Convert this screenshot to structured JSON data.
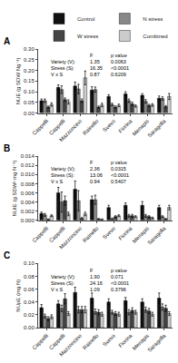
{
  "chart_data": [
    {
      "type": "bar",
      "title": "A",
      "categories": [
        "Cappelli",
        "Cappelli",
        "Mazzoncino",
        "Rainello",
        "Svevo",
        "Fiorina",
        "Menapis",
        "Saragolla"
      ],
      "ylabel": "NUE (g SDW Ng⁻¹)",
      "ylim": [
        0,
        0.3
      ],
      "yticks": [
        {
          "value": 0,
          "label": "0.00"
        },
        0.05,
        {
          "value": 0.1,
          "label": "0.10"
        },
        0.15,
        {
          "value": 0.2,
          "label": "0.20"
        },
        0.25,
        {
          "value": 0.3,
          "label": "0.30"
        }
      ],
      "series": [
        {
          "name": "Control",
          "color": "#111111",
          "values": [
            0.058,
            0.12,
            0.127,
            0.108,
            0.078,
            0.09,
            0.083,
            0.07
          ],
          "errors": [
            0.008,
            0.012,
            0.018,
            0.015,
            0.008,
            0.01,
            0.008,
            0.01
          ]
        },
        {
          "name": "N stress",
          "color": "#888888",
          "values": [
            0.058,
            0.11,
            0.113,
            0.11,
            0.04,
            0.058,
            0.055,
            0.068
          ],
          "errors": [
            0.008,
            0.018,
            0.022,
            0.012,
            0.006,
            0.008,
            0.008,
            0.008
          ]
        },
        {
          "name": "W stress",
          "color": "#444444",
          "values": [
            0.028,
            0.063,
            0.058,
            0.028,
            0.028,
            0.043,
            0.036,
            0.03
          ],
          "errors": [
            0.005,
            0.008,
            0.008,
            0.005,
            0.005,
            0.008,
            0.005,
            0.005
          ]
        },
        {
          "name": "Combined",
          "color": "#cccccc",
          "values": [
            0.04,
            0.052,
            0.165,
            0.038,
            0.036,
            0.033,
            0.038,
            0.078
          ],
          "errors": [
            0.008,
            0.01,
            0.032,
            0.008,
            0.006,
            0.005,
            0.006,
            0.014
          ]
        }
      ],
      "annotations": [
        [
          "F",
          "p value"
        ],
        [
          "Variety (V):",
          "1.35",
          "0.0063"
        ],
        [
          "Stress (S):",
          "16.35",
          "<0.0001"
        ],
        [
          "V x S",
          "0.87",
          "0.6209"
        ]
      ],
      "legend": "upper right"
    },
    {
      "type": "bar",
      "title": "B",
      "categories": [
        "Cappelli",
        "Cappelli",
        "Mazzoncino",
        "Rainello",
        "Svevo",
        "Fiorina",
        "Menapis",
        "Saragolla"
      ],
      "ylabel": "NUtE (g SDW² mg N⁻¹)",
      "ylim": [
        0,
        0.014
      ],
      "yticks": [
        {
          "value": 0,
          "label": "0.000"
        },
        0.002,
        0.004,
        0.006,
        0.008,
        {
          "value": 0.01,
          "label": "0.010"
        },
        0.012,
        0.014
      ],
      "series": [
        {
          "name": "Control",
          "color": "#111111",
          "values": [
            0.0015,
            0.006,
            0.0068,
            0.0045,
            0.0028,
            0.0033,
            0.0033,
            0.0028
          ],
          "errors": [
            0.0003,
            0.0012,
            0.0018,
            0.0008,
            0.0005,
            0.0005,
            0.0008,
            0.0005
          ]
        },
        {
          "name": "N stress",
          "color": "#888888",
          "values": [
            0.0012,
            0.004,
            0.0043,
            0.0045,
            0.0003,
            0.001,
            0.001,
            0.0008
          ],
          "errors": [
            0.0003,
            0.0022,
            0.0022,
            0.001,
            0.0002,
            0.0003,
            0.0003,
            0.0002
          ]
        },
        {
          "name": "W stress",
          "color": "#444444",
          "values": [
            0.0002,
            0.0043,
            0.0004,
            0.0003,
            0.0008,
            0.001,
            0.0008,
            0.0003
          ],
          "errors": [
            0.0001,
            0.001,
            0.0002,
            0.0001,
            0.0002,
            0.0003,
            0.0002,
            0.0001
          ]
        },
        {
          "name": "Combined",
          "color": "#cccccc",
          "values": [
            0.001,
            0.0014,
            0.0014,
            0.0002,
            0.001,
            0.0008,
            0.0005,
            0.0028
          ],
          "errors": [
            0.0002,
            0.0004,
            0.0004,
            0.0001,
            0.0002,
            0.0002,
            0.0002,
            0.0005
          ]
        }
      ],
      "annotations": [
        [
          "F",
          "p value"
        ],
        [
          "Variety (V):",
          "2.36",
          "0.0315"
        ],
        [
          "Stress (S):",
          "13.06",
          "<0.0001"
        ],
        [
          "V x S",
          "0.94",
          "0.5407"
        ]
      ]
    },
    {
      "type": "bar",
      "title": "C",
      "categories": [
        "Cappelli",
        "Cappelli",
        "Mazzoncino",
        "Rainello",
        "Svevo",
        "Fiorina",
        "Menapis",
        "Saragolla"
      ],
      "ylabel": "NUpE (mg N)",
      "ylim": [
        0,
        0.1
      ],
      "yticks": [
        {
          "value": 0,
          "label": "0.00"
        },
        0.02,
        0.04,
        0.06,
        0.08,
        {
          "value": 0.1,
          "label": "0.10"
        }
      ],
      "series": [
        {
          "name": "Control",
          "color": "#111111",
          "values": [
            0.031,
            0.037,
            0.055,
            0.046,
            0.04,
            0.042,
            0.04,
            0.046
          ],
          "errors": [
            0.005,
            0.005,
            0.008,
            0.008,
            0.005,
            0.005,
            0.005,
            0.008
          ]
        },
        {
          "name": "N stress",
          "color": "#888888",
          "values": [
            0.018,
            0.03,
            0.028,
            0.025,
            0.024,
            0.024,
            0.028,
            0.032
          ],
          "errors": [
            0.003,
            0.005,
            0.005,
            0.004,
            0.003,
            0.004,
            0.004,
            0.005
          ]
        },
        {
          "name": "W stress",
          "color": "#444444",
          "values": [
            0.014,
            0.045,
            0.028,
            0.024,
            0.022,
            0.027,
            0.026,
            0.03
          ],
          "errors": [
            0.003,
            0.008,
            0.005,
            0.004,
            0.003,
            0.004,
            0.004,
            0.005
          ]
        },
        {
          "name": "Combined",
          "color": "#cccccc",
          "values": [
            0.017,
            0.022,
            0.028,
            0.021,
            0.021,
            0.024,
            0.021,
            0.022
          ],
          "errors": [
            0.003,
            0.003,
            0.005,
            0.003,
            0.003,
            0.003,
            0.003,
            0.003
          ]
        }
      ],
      "annotations": [
        [
          "F",
          "p value"
        ],
        [
          "Variety (V):",
          "1.90",
          "0.071"
        ],
        [
          "Stress (S):",
          "24.16",
          "<0.0001"
        ],
        [
          "V x S",
          "1.09",
          "0.3796"
        ]
      ]
    }
  ]
}
